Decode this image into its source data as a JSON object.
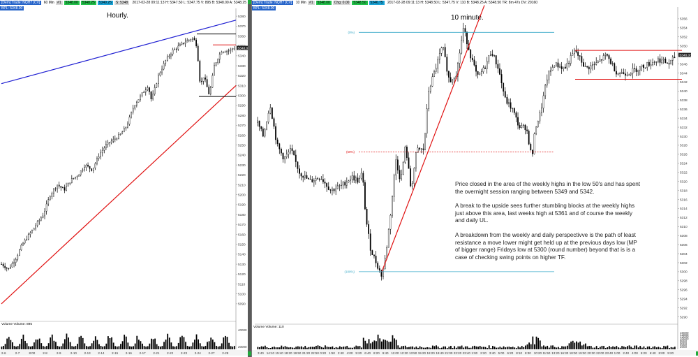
{
  "colors": {
    "price": "#000000",
    "volume": "#000000",
    "blue_trend": "#1e1ed2",
    "red_trend": "#e01010",
    "level_red": "#e01010",
    "level_black": "#000000",
    "fib": "#3aaac8",
    "fib_mid": "#e01010"
  },
  "left": {
    "header": {
      "symbol": "[Dem] Trade: NQH7 [CV]",
      "tf": "60 Min",
      "pills": [
        "#1",
        "5348.00",
        "5348.25",
        "5349.25",
        "S: 5348"
      ],
      "text": "2017-02-28 09:11:13 H: 5347.50 L: 5347.75 V: 895 B: 5348.00 A: 5348.25"
    },
    "tag": "BPL: 5348.00",
    "title": "Hourly.",
    "last_price": "5348.00",
    "volume_label": "Volume Volume: 895",
    "vol_ticks": [
      "40000",
      "20000"
    ],
    "date_ticks": [
      "2-6",
      "2-7",
      "8:00",
      "2-8",
      "2-9",
      "2-10",
      "2-13",
      "2-14",
      "2-15",
      "2-16",
      "2-17",
      "2-21",
      "2-22",
      "2-23",
      "2-24",
      "2-27",
      "2-28"
    ],
    "chart_data": {
      "type": "candlestick",
      "ylim": [
        5085,
        5385
      ],
      "y_ticks": [
        5380,
        5370,
        5360,
        5350,
        5340,
        5330,
        5320,
        5310,
        5300,
        5290,
        5280,
        5270,
        5260,
        5250,
        5240,
        5230,
        5220,
        5210,
        5200,
        5190,
        5180,
        5170,
        5160,
        5150,
        5140,
        5130,
        5120,
        5110,
        5100,
        5090
      ],
      "close_path": [
        [
          0,
          5130
        ],
        [
          10,
          5125
        ],
        [
          20,
          5135
        ],
        [
          30,
          5150
        ],
        [
          40,
          5160
        ],
        [
          50,
          5170
        ],
        [
          60,
          5180
        ],
        [
          70,
          5200
        ],
        [
          80,
          5210
        ],
        [
          90,
          5205
        ],
        [
          100,
          5215
        ],
        [
          110,
          5220
        ],
        [
          120,
          5230
        ],
        [
          130,
          5225
        ],
        [
          140,
          5240
        ],
        [
          150,
          5250
        ],
        [
          160,
          5255
        ],
        [
          170,
          5260
        ],
        [
          180,
          5270
        ],
        [
          190,
          5290
        ],
        [
          200,
          5300
        ],
        [
          210,
          5310
        ],
        [
          215,
          5295
        ],
        [
          225,
          5320
        ],
        [
          235,
          5335
        ],
        [
          245,
          5345
        ],
        [
          255,
          5350
        ],
        [
          265,
          5355
        ],
        [
          275,
          5358
        ],
        [
          280,
          5350
        ],
        [
          285,
          5310
        ],
        [
          290,
          5320
        ],
        [
          298,
          5300
        ],
        [
          305,
          5330
        ],
        [
          315,
          5345
        ],
        [
          325,
          5345
        ],
        [
          333,
          5348
        ]
      ],
      "trendlines": [
        {
          "color": "blue",
          "from": [
            0,
            5312
          ],
          "to": [
            336,
            5376
          ]
        },
        {
          "color": "red",
          "from": [
            0,
            5090
          ],
          "to": [
            336,
            5310
          ]
        }
      ],
      "levels": [
        {
          "color": "black",
          "value": 5362,
          "from": 280,
          "to": 336
        },
        {
          "color": "red",
          "value": 5351,
          "from": 303,
          "to": 336
        },
        {
          "color": "black",
          "value": 5299,
          "from": 283,
          "to": 336
        }
      ]
    }
  },
  "right": {
    "header": {
      "symbol": "[Dem] Trade: NQH7 [CV]",
      "tf": "10 Min",
      "pills": [
        "#1",
        "5348.00",
        "Chg: 0.00",
        "5348.50",
        "5346.75"
      ],
      "text": "2017-02-28 09:11:13 H: 5348.50 L: 5347.75 V: 110 B: 5348.25 A: 5348.50 TR: 8m 47s DV: 20160"
    },
    "tag": "BPL: 5348.00",
    "title": "10 minute.",
    "last_price": "5348.00",
    "volume_label": "Volume Volume: 110",
    "vol_ticks": [
      "16000",
      "14000",
      "12000",
      "10000",
      "8000",
      "6000",
      "4000",
      "2000"
    ],
    "time_ticks": [
      "3:40",
      "14:10",
      "15:40",
      "18:20",
      "19:50",
      "21:20",
      "22:50",
      "0:20",
      "1:50",
      "2:40",
      "4:00",
      "5:20",
      "6:40",
      "8:20",
      "9:40",
      "11:00",
      "12:20",
      "13:50",
      "15:20",
      "18:20",
      "19:40",
      "21:00",
      "22:20",
      "23:40",
      "1:00",
      "2:20",
      "3:40",
      "5:00",
      "6:20",
      "8:10",
      "8:30",
      "10:20",
      "11:50",
      "13:20",
      "16:30",
      "18:00",
      "19:30",
      "20:30",
      "22:00",
      "23:40",
      "1:00",
      "2:40",
      "4:00",
      "5:20",
      "6:40",
      "8:00",
      "9:20"
    ],
    "fib_labels": [
      "(0%)",
      "(50%)",
      "(100%)"
    ],
    "chart_data": {
      "type": "candlestick",
      "ylim": [
        5289,
        5358
      ],
      "y_ticks": [
        5356,
        5354,
        5352,
        5350,
        5348,
        5346,
        5344,
        5342,
        5340,
        5338,
        5336,
        5334,
        5332,
        5330,
        5328,
        5326,
        5324,
        5322,
        5320,
        5318,
        5316,
        5314,
        5312,
        5310,
        5308,
        5306,
        5304,
        5302,
        5300,
        5298,
        5296,
        5294,
        5292,
        5290
      ],
      "close_path": [
        [
          0,
          5333
        ],
        [
          8,
          5330
        ],
        [
          18,
          5337
        ],
        [
          28,
          5328
        ],
        [
          38,
          5325
        ],
        [
          48,
          5327
        ],
        [
          60,
          5322
        ],
        [
          75,
          5320
        ],
        [
          90,
          5321
        ],
        [
          105,
          5318
        ],
        [
          120,
          5319
        ],
        [
          135,
          5321
        ],
        [
          145,
          5320
        ],
        [
          150,
          5322
        ],
        [
          155,
          5312
        ],
        [
          162,
          5305
        ],
        [
          170,
          5302
        ],
        [
          178,
          5299
        ],
        [
          184,
          5304
        ],
        [
          192,
          5315
        ],
        [
          198,
          5325
        ],
        [
          205,
          5320
        ],
        [
          212,
          5328
        ],
        [
          220,
          5318
        ],
        [
          228,
          5327
        ],
        [
          238,
          5327
        ],
        [
          245,
          5340
        ],
        [
          255,
          5345
        ],
        [
          265,
          5350
        ],
        [
          275,
          5342
        ],
        [
          285,
          5344
        ],
        [
          295,
          5354
        ],
        [
          305,
          5348
        ],
        [
          315,
          5343
        ],
        [
          325,
          5345
        ],
        [
          335,
          5349
        ],
        [
          345,
          5345
        ],
        [
          355,
          5338
        ],
        [
          365,
          5336
        ],
        [
          375,
          5332
        ],
        [
          385,
          5332
        ],
        [
          393,
          5325
        ],
        [
          398,
          5332
        ],
        [
          405,
          5335
        ],
        [
          415,
          5343
        ],
        [
          425,
          5346
        ],
        [
          440,
          5345
        ],
        [
          455,
          5349
        ],
        [
          470,
          5345
        ],
        [
          485,
          5346
        ],
        [
          500,
          5348
        ],
        [
          515,
          5344
        ],
        [
          530,
          5344
        ],
        [
          545,
          5345
        ],
        [
          560,
          5346
        ],
        [
          575,
          5347
        ],
        [
          590,
          5346
        ],
        [
          600,
          5348
        ]
      ],
      "trendlines": [
        {
          "color": "red",
          "from": [
            178,
            5300
          ],
          "to": [
            325,
            5359
          ]
        }
      ],
      "levels": [
        {
          "color": "red",
          "value": 5349,
          "from": 455,
          "to": 608
        },
        {
          "color": "red",
          "value": 5342.6,
          "from": 455,
          "to": 608
        }
      ],
      "fib": [
        {
          "label": "0%",
          "value": 5353,
          "from": 145,
          "to": 425
        },
        {
          "label": "50%",
          "value": 5326.5,
          "from": 145,
          "to": 425
        },
        {
          "label": "100%",
          "value": 5300,
          "from": 145,
          "to": 425
        }
      ]
    }
  },
  "note": {
    "p1": "Price closed in the area of the weekly highs in the low 50's and has spent the overnight session ranging between 5349 and 5342.",
    "p2": "A break to the upside sees further stumbling blocks at the weekly highs just above this area, last weeks high at 5361 and of course the weekly and daily UL.",
    "p3": "A breakdown from the weekly and daily perspectivve is the path of least resistance a move lower might get held up at the previous days low (MP of bigger range) Fridays low at 5300 (round number) beyond that is is a case of checking swing points on higher TF."
  }
}
